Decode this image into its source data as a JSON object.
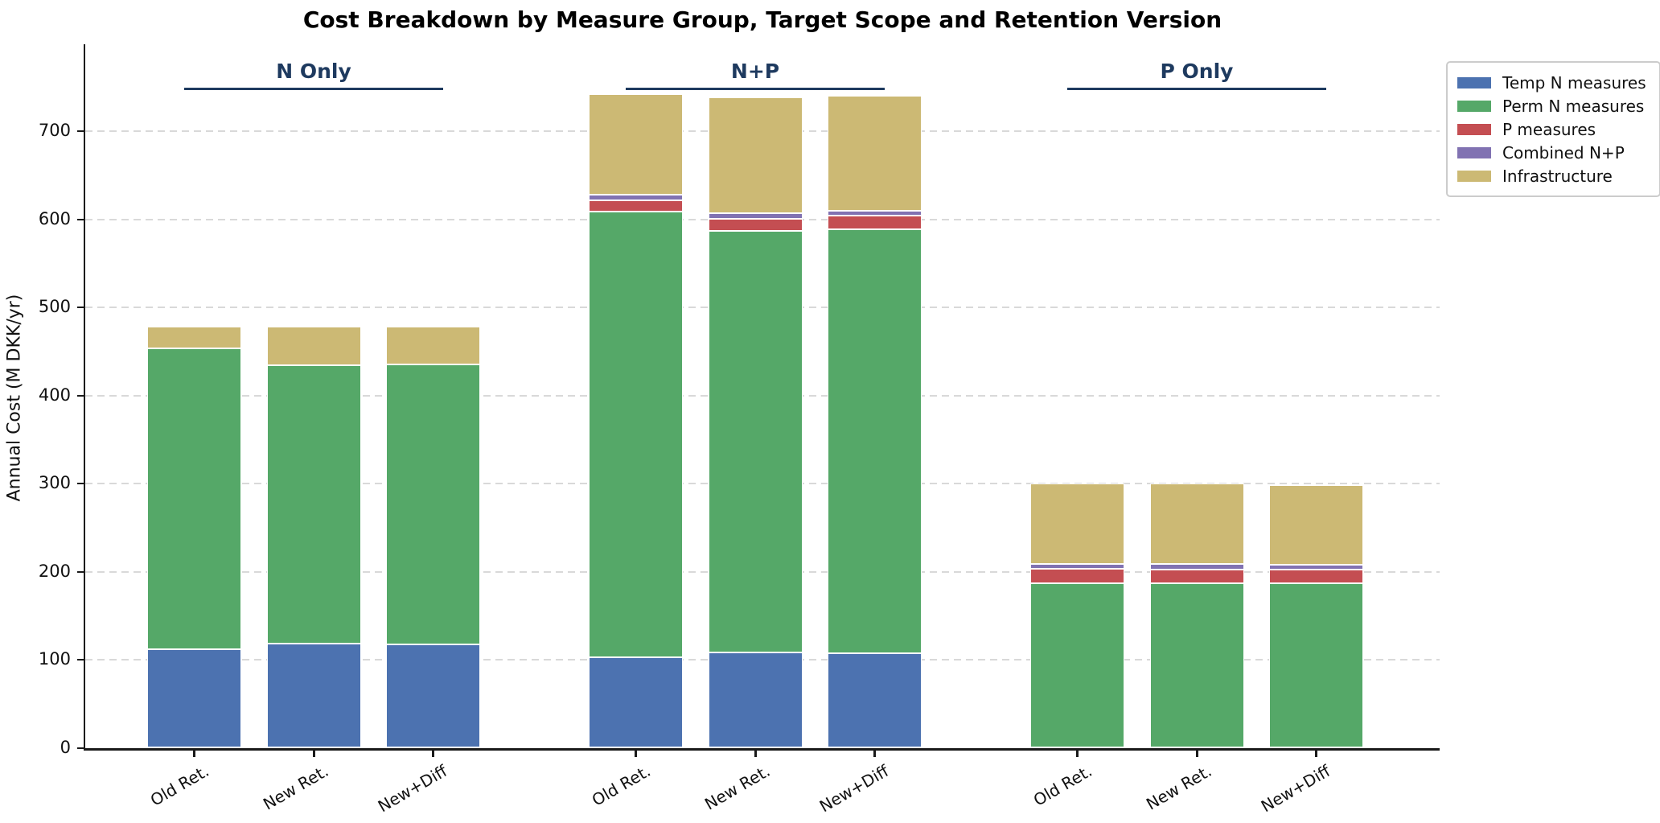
{
  "chart_data": {
    "type": "bar",
    "stacked": true,
    "title": "Cost Breakdown by Measure Group, Target Scope and Retention Version",
    "ylabel": "Annual Cost (M DKK/yr)",
    "xlabel": "",
    "ylim": [
      0,
      760
    ],
    "yticks": [
      0,
      100,
      200,
      300,
      400,
      500,
      600,
      700
    ],
    "grid": "horizontal-dashed",
    "legend_position": "outside-top-right",
    "group_header_color": "#1e3a5f",
    "series_legend": [
      {
        "name": "Temp N measures",
        "key": "temp_n",
        "color": "#4C72B0"
      },
      {
        "name": "Perm N measures",
        "key": "perm_n",
        "color": "#55A868"
      },
      {
        "name": "P measures",
        "key": "p",
        "color": "#C44E52"
      },
      {
        "name": "Combined N+P",
        "key": "combined",
        "color": "#8172B2"
      },
      {
        "name": "Infrastructure",
        "key": "infra",
        "color": "#CCB974"
      }
    ],
    "groups": [
      {
        "label": "N Only",
        "bars": [
          {
            "label": "Old Ret.",
            "values": {
              "temp_n": 112,
              "perm_n": 342,
              "p": 0,
              "combined": 0,
              "infra": 24
            },
            "total": 478
          },
          {
            "label": "New Ret.",
            "values": {
              "temp_n": 118,
              "perm_n": 316,
              "p": 0,
              "combined": 0,
              "infra": 44
            },
            "total": 478
          },
          {
            "label": "New+Diff",
            "values": {
              "temp_n": 117,
              "perm_n": 318,
              "p": 0,
              "combined": 0,
              "infra": 43
            },
            "total": 478
          }
        ]
      },
      {
        "label": "N+P",
        "bars": [
          {
            "label": "Old Ret.",
            "values": {
              "temp_n": 103,
              "perm_n": 506,
              "p": 13,
              "combined": 6,
              "infra": 114
            },
            "total": 742
          },
          {
            "label": "New Ret.",
            "values": {
              "temp_n": 108,
              "perm_n": 479,
              "p": 14,
              "combined": 6,
              "infra": 132
            },
            "total": 739
          },
          {
            "label": "New+Diff",
            "values": {
              "temp_n": 107,
              "perm_n": 482,
              "p": 15,
              "combined": 6,
              "infra": 130
            },
            "total": 740
          }
        ]
      },
      {
        "label": "P Only",
        "bars": [
          {
            "label": "Old Ret.",
            "values": {
              "temp_n": 0,
              "perm_n": 187,
              "p": 16,
              "combined": 6,
              "infra": 91
            },
            "total": 300
          },
          {
            "label": "New Ret.",
            "values": {
              "temp_n": 0,
              "perm_n": 187,
              "p": 15,
              "combined": 7,
              "infra": 91
            },
            "total": 300
          },
          {
            "label": "New+Diff",
            "values": {
              "temp_n": 0,
              "perm_n": 187,
              "p": 15,
              "combined": 6,
              "infra": 90
            },
            "total": 298
          }
        ]
      }
    ]
  }
}
